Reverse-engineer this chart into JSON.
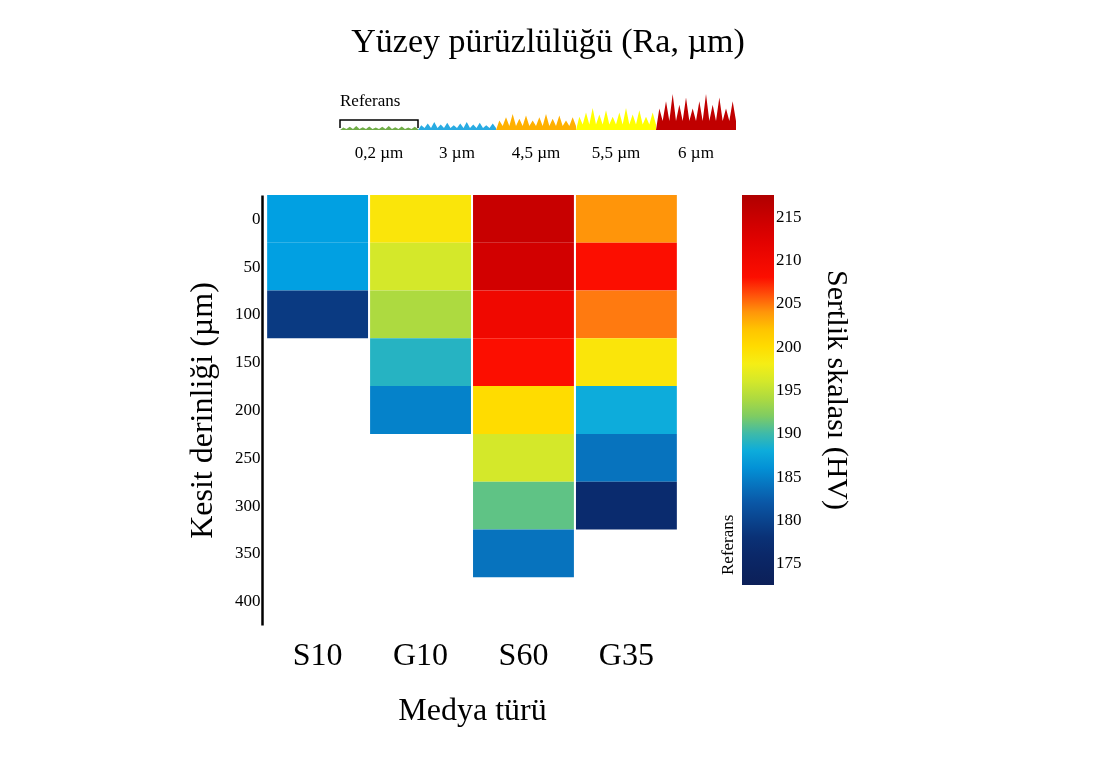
{
  "chart_data": {
    "type": "heatmap",
    "title": "Yüzey pürüzlülüğü (Ra, µm)",
    "xlabel": "Medya türü",
    "ylabel": "Kesit derinliği (µm)",
    "clabel": "Sertlik skalası (HV)",
    "categories": [
      "S10",
      "G10",
      "S60",
      "G35"
    ],
    "y_categories": [
      "0",
      "50",
      "100",
      "150",
      "200",
      "250",
      "300",
      "350",
      "400"
    ],
    "cells": [
      [
        187,
        199,
        215,
        204
      ],
      [
        187,
        196,
        214,
        208
      ],
      [
        179,
        194,
        210,
        205
      ],
      [
        null,
        189,
        208,
        199
      ],
      [
        null,
        185,
        200,
        188
      ],
      [
        null,
        null,
        196,
        184
      ],
      [
        null,
        null,
        191,
        177
      ],
      [
        null,
        null,
        184,
        null
      ],
      [
        null,
        null,
        null,
        null
      ]
    ],
    "clim": [
      172.5,
      217.5
    ],
    "cticks": [
      175,
      180,
      185,
      190,
      195,
      200,
      205,
      210,
      215
    ],
    "annotations": [
      "Referans",
      "0,2 µm",
      "3 µm",
      "4,5 µm",
      "5,5 µm",
      "6 µm",
      "Referans"
    ]
  }
}
